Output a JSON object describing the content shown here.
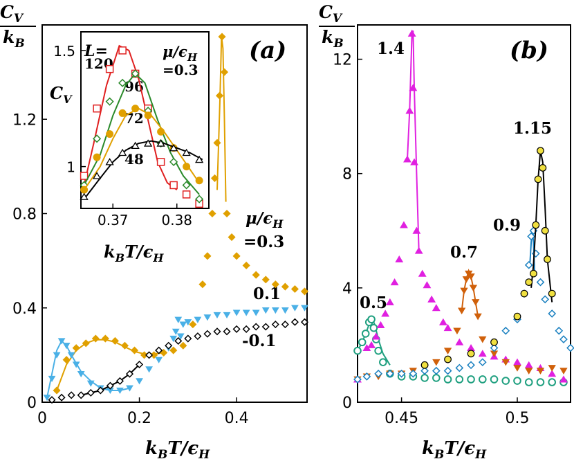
{
  "chart_data": [
    {
      "panel": "(a)",
      "type": "scatter",
      "ylabel": "C_V / k_B",
      "xlabel": "k_B T/ε_H",
      "xlim": [
        0,
        0.545
      ],
      "ylim": [
        0,
        1.6
      ],
      "xticks": [
        "0",
        "0.2",
        "0.4"
      ],
      "yticks": [
        "0",
        "0.4",
        "0.8",
        "1.2"
      ],
      "legend_title": "μ/ε_H",
      "series": [
        {
          "name": "=0.3",
          "color": "#e0a000",
          "marker": "diamond",
          "x": [
            0.03,
            0.05,
            0.07,
            0.09,
            0.11,
            0.13,
            0.15,
            0.17,
            0.19,
            0.21,
            0.23,
            0.25,
            0.27,
            0.29,
            0.31,
            0.33,
            0.34,
            0.35,
            0.355,
            0.36,
            0.365,
            0.37,
            0.375,
            0.38,
            0.39,
            0.4,
            0.42,
            0.44,
            0.46,
            0.48,
            0.5,
            0.52,
            0.54
          ],
          "y": [
            0.05,
            0.18,
            0.23,
            0.25,
            0.27,
            0.27,
            0.26,
            0.24,
            0.22,
            0.2,
            0.2,
            0.21,
            0.22,
            0.24,
            0.33,
            0.5,
            0.62,
            0.8,
            0.95,
            1.1,
            1.3,
            1.55,
            1.4,
            0.8,
            0.7,
            0.62,
            0.58,
            0.54,
            0.52,
            0.5,
            0.49,
            0.48,
            0.47
          ],
          "curve_x": [
            0.03,
            0.05,
            0.07,
            0.09,
            0.11,
            0.13,
            0.15,
            0.17,
            0.19,
            0.21,
            0.23,
            0.25
          ],
          "curve_y": [
            0.05,
            0.16,
            0.22,
            0.25,
            0.265,
            0.265,
            0.255,
            0.235,
            0.215,
            0.205,
            0.205,
            0.21
          ],
          "curve2_x": [
            0.36,
            0.363,
            0.366,
            0.369,
            0.372,
            0.375,
            0.378
          ],
          "curve2_y": [
            0.9,
            1.1,
            1.3,
            1.55,
            1.5,
            1.2,
            0.85
          ]
        },
        {
          "name": "0.1",
          "color": "#4ab0e6",
          "marker": "triangle-down",
          "x": [
            0.01,
            0.02,
            0.03,
            0.04,
            0.05,
            0.06,
            0.07,
            0.08,
            0.1,
            0.12,
            0.14,
            0.16,
            0.18,
            0.2,
            0.22,
            0.24,
            0.26,
            0.27,
            0.275,
            0.28,
            0.285,
            0.29,
            0.3,
            0.32,
            0.34,
            0.36,
            0.38,
            0.4,
            0.42,
            0.44,
            0.46,
            0.48,
            0.5,
            0.52,
            0.54
          ],
          "y": [
            0.02,
            0.1,
            0.2,
            0.26,
            0.24,
            0.2,
            0.16,
            0.12,
            0.08,
            0.06,
            0.05,
            0.05,
            0.06,
            0.09,
            0.14,
            0.18,
            0.23,
            0.27,
            0.3,
            0.35,
            0.28,
            0.33,
            0.34,
            0.35,
            0.36,
            0.37,
            0.37,
            0.38,
            0.38,
            0.38,
            0.39,
            0.39,
            0.39,
            0.4,
            0.4
          ],
          "curve_x": [
            0.01,
            0.02,
            0.03,
            0.04,
            0.05,
            0.06,
            0.08,
            0.1,
            0.12,
            0.14,
            0.16,
            0.18
          ],
          "curve_y": [
            0.02,
            0.12,
            0.22,
            0.26,
            0.24,
            0.2,
            0.13,
            0.09,
            0.06,
            0.05,
            0.05,
            0.06
          ]
        },
        {
          "name": "-0.1",
          "color": "#000000",
          "marker": "diamond-open",
          "x": [
            0.02,
            0.04,
            0.06,
            0.08,
            0.1,
            0.12,
            0.14,
            0.16,
            0.18,
            0.2,
            0.22,
            0.24,
            0.26,
            0.28,
            0.3,
            0.32,
            0.34,
            0.36,
            0.38,
            0.4,
            0.42,
            0.44,
            0.46,
            0.48,
            0.5,
            0.52,
            0.54
          ],
          "y": [
            0.01,
            0.02,
            0.03,
            0.03,
            0.04,
            0.05,
            0.07,
            0.09,
            0.12,
            0.16,
            0.2,
            0.22,
            0.24,
            0.26,
            0.27,
            0.28,
            0.29,
            0.3,
            0.3,
            0.31,
            0.31,
            0.32,
            0.32,
            0.33,
            0.33,
            0.34,
            0.34
          ],
          "curve_x": [
            0.08,
            0.1,
            0.12,
            0.14,
            0.16,
            0.18,
            0.2
          ],
          "curve_y": [
            0.03,
            0.04,
            0.05,
            0.07,
            0.09,
            0.12,
            0.16
          ]
        }
      ],
      "labels": [
        "(a)",
        "0.1",
        "-0.1",
        "=0.3"
      ],
      "inset": {
        "type": "line",
        "ylabel": "C_V",
        "xlabel": "k_B T/ε_H",
        "xlim": [
          0.365,
          0.385
        ],
        "ylim": [
          0.82,
          1.58
        ],
        "xticks": [
          "0.37",
          "0.38"
        ],
        "yticks": [
          "1",
          "1.5"
        ],
        "L_label": "L=",
        "mu_label": "μ/ε_H",
        "mu_value": "=0.3",
        "series": [
          {
            "name": "120",
            "color": "#e02020",
            "marker": "square-open",
            "x": [
              0.3655,
              0.3675,
              0.3695,
              0.3715,
              0.3735,
              0.3755,
              0.3775,
              0.3795,
              0.3815,
              0.3835
            ],
            "y": [
              0.96,
              1.25,
              1.42,
              1.5,
              1.4,
              1.25,
              1.02,
              0.92,
              0.88,
              0.84
            ],
            "curve_x": [
              0.3655,
              0.367,
              0.369,
              0.371,
              0.3725,
              0.374,
              0.3755,
              0.377,
              0.3785,
              0.38
            ],
            "curve_y": [
              0.92,
              1.1,
              1.35,
              1.52,
              1.5,
              1.38,
              1.2,
              1.02,
              0.93,
              0.9
            ]
          },
          {
            "name": "96",
            "color": "#2a8a2a",
            "marker": "diamond-open",
            "x": [
              0.3655,
              0.3675,
              0.3695,
              0.3715,
              0.3735,
              0.3755,
              0.3775,
              0.3795,
              0.3815,
              0.3835
            ],
            "y": [
              0.92,
              1.12,
              1.28,
              1.36,
              1.4,
              1.24,
              1.1,
              1.02,
              0.92,
              0.86
            ],
            "curve_x": [
              0.3655,
              0.368,
              0.37,
              0.372,
              0.3735,
              0.375,
              0.377,
              0.379,
              0.381,
              0.3835
            ],
            "curve_y": [
              0.92,
              1.05,
              1.22,
              1.35,
              1.4,
              1.36,
              1.2,
              1.06,
              0.96,
              0.88
            ]
          },
          {
            "name": "72",
            "color": "#e0a000",
            "marker": "circle",
            "x": [
              0.3655,
              0.3675,
              0.3695,
              0.3715,
              0.3735,
              0.3755,
              0.3775,
              0.3795,
              0.3815,
              0.3835
            ],
            "y": [
              0.9,
              1.04,
              1.14,
              1.23,
              1.25,
              1.22,
              1.15,
              1.08,
              1.0,
              0.94
            ],
            "curve_x": [
              0.3655,
              0.368,
              0.37,
              0.372,
              0.374,
              0.376,
              0.378,
              0.38,
              0.382,
              0.3835
            ],
            "curve_y": [
              0.9,
              1.0,
              1.12,
              1.22,
              1.25,
              1.22,
              1.15,
              1.07,
              0.99,
              0.93
            ]
          },
          {
            "name": "48",
            "color": "#000000",
            "marker": "triangle-open",
            "x": [
              0.3655,
              0.3675,
              0.3695,
              0.3715,
              0.3735,
              0.3755,
              0.3775,
              0.3795,
              0.3815,
              0.3835
            ],
            "y": [
              0.87,
              0.96,
              1.02,
              1.06,
              1.09,
              1.1,
              1.1,
              1.08,
              1.06,
              1.03
            ],
            "curve_x": [
              0.3655,
              0.368,
              0.37,
              0.372,
              0.374,
              0.376,
              0.378,
              0.38,
              0.382,
              0.384
            ],
            "curve_y": [
              0.86,
              0.95,
              1.02,
              1.07,
              1.1,
              1.11,
              1.1,
              1.08,
              1.06,
              1.03
            ]
          }
        ]
      }
    },
    {
      "panel": "(b)",
      "type": "scatter",
      "ylabel": "C_V / k_B",
      "xlabel": "k_B T/ε_H",
      "xlim": [
        0.431,
        0.523
      ],
      "ylim": [
        0,
        13.2
      ],
      "xticks": [
        "0.45",
        "0.5"
      ],
      "yticks": [
        "0",
        "4",
        "8",
        "12"
      ],
      "series": [
        {
          "name": "0.5",
          "color": "#20a080",
          "marker": "circle-open",
          "x": [
            0.431,
            0.433,
            0.4345,
            0.436,
            0.437,
            0.438,
            0.439,
            0.44,
            0.442,
            0.445,
            0.45,
            0.455,
            0.46,
            0.465,
            0.47,
            0.475,
            0.48,
            0.485,
            0.49,
            0.495,
            0.5,
            0.505,
            0.51,
            0.515,
            0.52
          ],
          "y": [
            1.8,
            2.1,
            2.4,
            2.8,
            2.9,
            2.6,
            2.2,
            1.8,
            1.4,
            1.0,
            0.9,
            0.9,
            0.85,
            0.85,
            0.8,
            0.8,
            0.8,
            0.8,
            0.8,
            0.75,
            0.75,
            0.7,
            0.7,
            0.7,
            0.7
          ],
          "curve_x": [
            0.431,
            0.433,
            0.435,
            0.4365,
            0.4375,
            0.4385,
            0.44,
            0.442,
            0.445
          ],
          "curve_y": [
            1.8,
            2.1,
            2.5,
            2.85,
            2.9,
            2.7,
            2.2,
            1.7,
            1.3
          ]
        },
        {
          "name": "1.4",
          "color": "#e020e0",
          "marker": "triangle-up",
          "x": [
            0.431,
            0.435,
            0.437,
            0.439,
            0.441,
            0.443,
            0.445,
            0.447,
            0.449,
            0.451,
            0.4525,
            0.4535,
            0.4545,
            0.455,
            0.4555,
            0.4565,
            0.4575,
            0.459,
            0.461,
            0.463,
            0.465,
            0.468,
            0.47,
            0.475,
            0.48,
            0.485,
            0.49,
            0.495,
            0.5,
            0.505,
            0.51,
            0.515,
            0.52
          ],
          "y": [
            0.8,
            1.9,
            2.0,
            2.3,
            2.7,
            3.1,
            3.5,
            4.2,
            5.0,
            6.2,
            8.5,
            10.2,
            12.9,
            11.0,
            8.4,
            6.0,
            5.3,
            4.5,
            4.1,
            3.6,
            3.3,
            2.8,
            2.6,
            2.1,
            1.9,
            1.7,
            1.6,
            1.5,
            1.4,
            1.3,
            1.2,
            1.0,
            0.8
          ],
          "curve_x": [
            0.4525,
            0.4535,
            0.4545,
            0.455,
            0.4555,
            0.4565,
            0.4575
          ],
          "curve_y": [
            8.5,
            10.2,
            12.9,
            13.0,
            11.0,
            8.0,
            5.3
          ]
        },
        {
          "name": "0.7",
          "color": "#d0600a",
          "marker": "triangle-down",
          "x": [
            0.431,
            0.435,
            0.44,
            0.445,
            0.45,
            0.455,
            0.46,
            0.465,
            0.47,
            0.474,
            0.476,
            0.477,
            0.478,
            0.479,
            0.48,
            0.481,
            0.482,
            0.483,
            0.485,
            0.49,
            0.495,
            0.5,
            0.505,
            0.51,
            0.515,
            0.52
          ],
          "y": [
            0.8,
            0.9,
            0.9,
            1.0,
            1.0,
            1.1,
            1.2,
            1.4,
            1.8,
            2.5,
            3.2,
            3.9,
            4.3,
            4.5,
            4.4,
            4.0,
            3.5,
            3.0,
            2.2,
            1.7,
            1.4,
            1.2,
            1.1,
            1.1,
            1.2,
            1.1
          ],
          "curve_x": [
            0.476,
            0.477,
            0.478,
            0.479,
            0.48,
            0.481,
            0.482,
            0.483
          ],
          "curve_y": [
            3.2,
            3.9,
            4.3,
            4.6,
            4.4,
            4.0,
            3.5,
            3.0
          ]
        },
        {
          "name": "0.9",
          "color": "#1a80c0",
          "marker": "diamond-open",
          "x": [
            0.431,
            0.435,
            0.44,
            0.445,
            0.45,
            0.455,
            0.46,
            0.465,
            0.47,
            0.475,
            0.48,
            0.485,
            0.49,
            0.495,
            0.5,
            0.503,
            0.505,
            0.506,
            0.507,
            0.508,
            0.51,
            0.512,
            0.515,
            0.518,
            0.52,
            0.523
          ],
          "y": [
            0.8,
            0.9,
            1.0,
            1.0,
            1.0,
            1.0,
            1.1,
            1.1,
            1.1,
            1.2,
            1.3,
            1.4,
            1.9,
            2.5,
            2.9,
            3.8,
            4.8,
            5.8,
            6.0,
            5.2,
            4.2,
            3.6,
            3.1,
            2.5,
            2.2,
            1.9
          ],
          "curve_x": [
            0.5055,
            0.506,
            0.5065,
            0.507,
            0.5075
          ],
          "curve_y": [
            4.9,
            5.6,
            6.0,
            5.6,
            4.5
          ]
        },
        {
          "name": "1.15",
          "color": "#000000",
          "fill": "#f0e040",
          "marker": "circle",
          "x": [
            0.46,
            0.47,
            0.48,
            0.49,
            0.5,
            0.503,
            0.505,
            0.507,
            0.508,
            0.509,
            0.51,
            0.511,
            0.512,
            0.513,
            0.515
          ],
          "y": [
            1.3,
            1.5,
            1.7,
            2.1,
            3.0,
            3.8,
            4.2,
            4.5,
            6.2,
            7.8,
            8.8,
            8.2,
            6.0,
            5.0,
            3.8
          ],
          "curve_x": [
            0.506,
            0.507,
            0.508,
            0.509,
            0.51,
            0.511,
            0.512,
            0.513,
            0.515
          ],
          "curve_y": [
            4.0,
            4.8,
            6.2,
            7.8,
            8.8,
            8.4,
            6.8,
            5.0,
            3.5
          ]
        }
      ],
      "labels": [
        "(b)",
        "0.5",
        "1.4",
        "0.7",
        "0.9",
        "1.15"
      ]
    }
  ]
}
